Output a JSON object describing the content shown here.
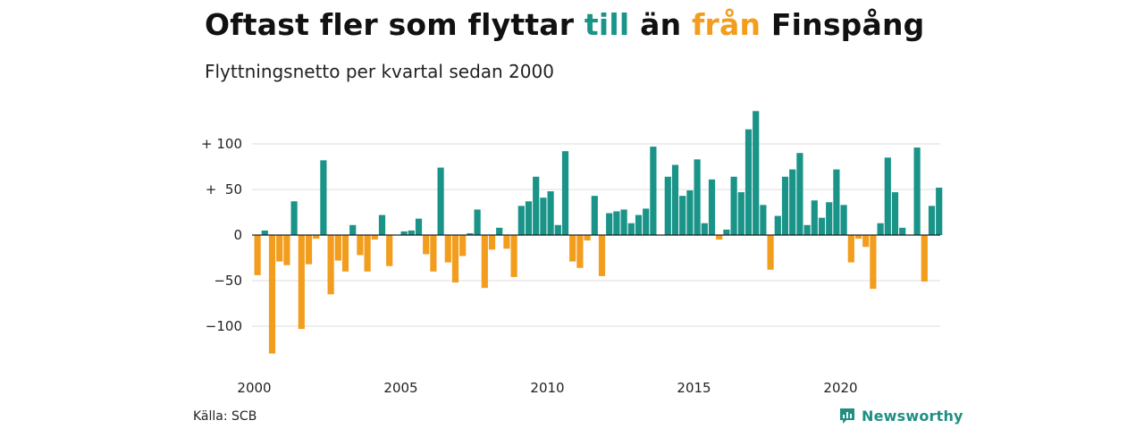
{
  "title": {
    "part1": "Oftast fler som flyttar ",
    "highlight_till": "till",
    "part2": " än ",
    "highlight_fran": "från",
    "part3": " Finspång"
  },
  "subtitle": "Flyttningsnetto per kvartal sedan 2000",
  "source": "Källa: SCB",
  "brand": {
    "name": "Newsworthy",
    "icon": "newsworthy-logo-icon"
  },
  "colors": {
    "positive": "#1a9488",
    "negative": "#f29d1d",
    "grid": "#dddddd",
    "zero": "#222222"
  },
  "chart_data": {
    "type": "bar",
    "start_year": 2000,
    "period": "quarter",
    "ylim": [
      -135,
      140
    ],
    "yticks": [
      {
        "value": 100,
        "label": "+ 100"
      },
      {
        "value": 50,
        "label": "+  50"
      },
      {
        "value": 0,
        "label": "0"
      },
      {
        "value": -50,
        "label": "−50"
      },
      {
        "value": -100,
        "label": "−100"
      }
    ],
    "xticks": [
      {
        "year": 2000,
        "label": "2000"
      },
      {
        "year": 2005,
        "label": "2005"
      },
      {
        "year": 2010,
        "label": "2010"
      },
      {
        "year": 2015,
        "label": "2015"
      },
      {
        "year": 2020,
        "label": "2020"
      }
    ],
    "grid": true,
    "values": [
      -44,
      5,
      -130,
      -29,
      -33,
      37,
      -103,
      -32,
      -4,
      82,
      -65,
      -28,
      -40,
      11,
      -22,
      -40,
      -5,
      22,
      -34,
      0,
      4,
      5,
      18,
      -21,
      -40,
      74,
      -30,
      -52,
      -23,
      2,
      28,
      -58,
      -16,
      8,
      -15,
      -46,
      32,
      37,
      64,
      41,
      48,
      11,
      92,
      -29,
      -36,
      -6,
      43,
      -45,
      24,
      26,
      28,
      13,
      22,
      29,
      97,
      0,
      64,
      77,
      43,
      49,
      83,
      13,
      61,
      -5,
      6,
      64,
      47,
      116,
      136,
      33,
      -38,
      21,
      64,
      72,
      90,
      11,
      38,
      19,
      36,
      72,
      33,
      -30,
      -4,
      -13,
      -59,
      13,
      85,
      47,
      8,
      0,
      96,
      -51,
      32,
      52
    ]
  }
}
